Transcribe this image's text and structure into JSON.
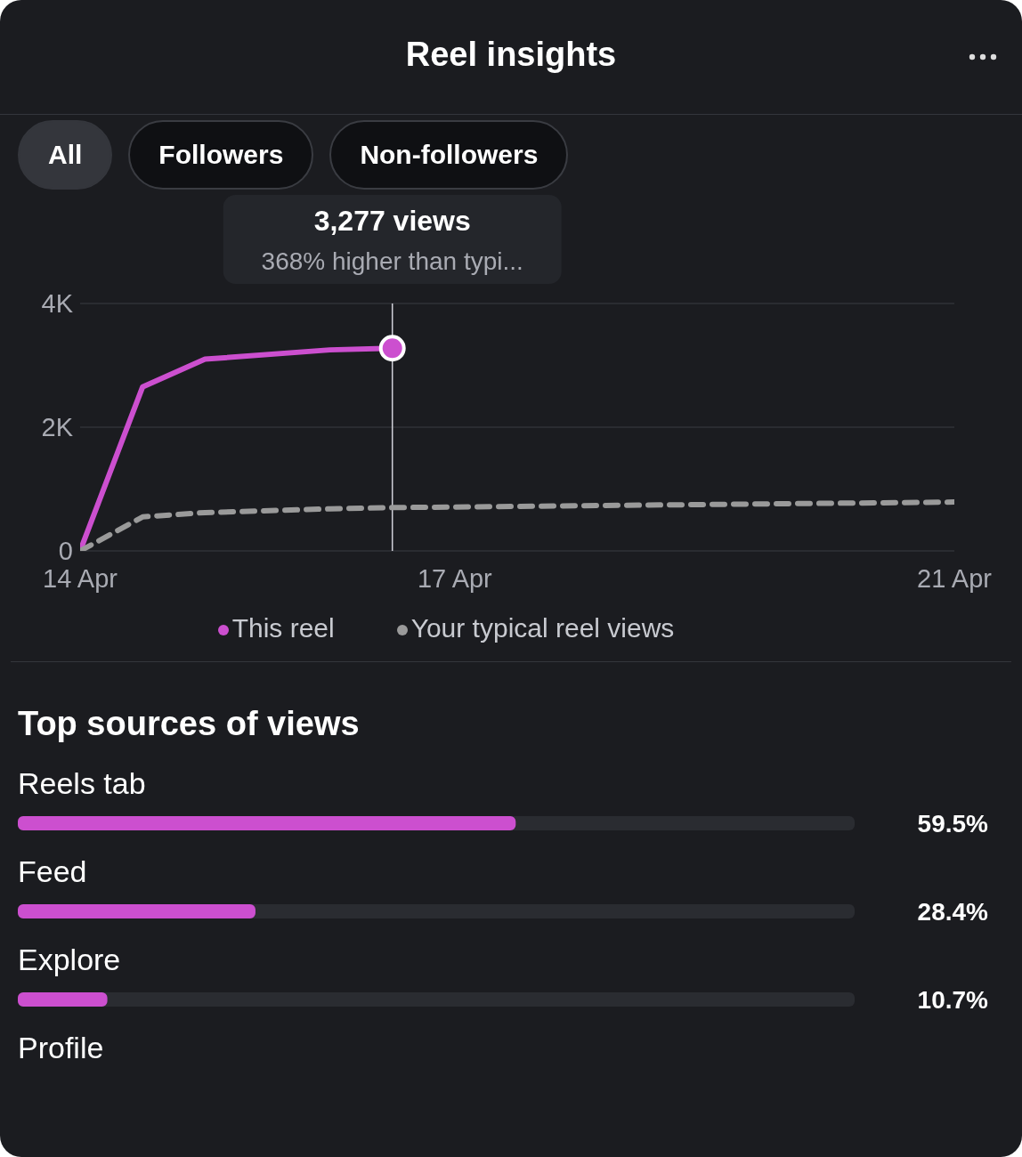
{
  "chart_data": [
    {
      "type": "line",
      "title": "Reel insights",
      "x": [
        "--04-14T00:00",
        "--04-14T12:00",
        "--04-15T00:00",
        "--04-16T00:00",
        "--04-16T12:00",
        "--04-18T00:00",
        "--04-19T12:00",
        "--04-21T00:00"
      ],
      "series": [
        {
          "name": "This reel",
          "color": "#cc4fcf",
          "line_style": "solid",
          "x": [
            "--04-14T00:00",
            "--04-14T12:00",
            "--04-15T00:00",
            "--04-16T00:00",
            "--04-16T12:00"
          ],
          "values": [
            0,
            2650,
            3100,
            3250,
            3277
          ]
        },
        {
          "name": "Your typical reel views",
          "color": "#9a9a9a",
          "line_style": "dashed",
          "values": [
            0,
            550,
            620,
            680,
            700,
            730,
            760,
            790
          ]
        }
      ],
      "xlim": [
        "--04-14",
        "--04-21"
      ],
      "xticks": [
        {
          "value": "--04-14",
          "label": "14 Apr"
        },
        {
          "value": "--04-17",
          "label": "17 Apr"
        },
        {
          "value": "--04-21",
          "label": "21 Apr"
        }
      ],
      "ylim": [
        0,
        4000
      ],
      "yticks": [
        0,
        {
          "value": 2000,
          "label": "2K"
        },
        {
          "value": 4000,
          "label": "4K"
        }
      ],
      "grid": "y",
      "legend": "bottom",
      "marker": "none",
      "ref_lines": [
        {
          "axis": "x",
          "value": "--04-16T12:00",
          "color": "#d0d0d8"
        }
      ],
      "annotations": [
        "All",
        "Followers",
        "Non-followers",
        "3,277 views",
        "368% higher than typi..."
      ]
    },
    {
      "type": "bar",
      "orientation": "horizontal",
      "title": "Top sources of views",
      "categories": [
        "Reels tab",
        "Feed",
        "Explore",
        "Profile"
      ],
      "values": [
        59.5,
        28.4,
        10.7,
        null
      ],
      "color": "#cc4fcf",
      "value_labels": [
        "59.5%",
        "28.4%",
        "10.7%",
        null
      ],
      "xlim": [
        0,
        100
      ]
    }
  ]
}
